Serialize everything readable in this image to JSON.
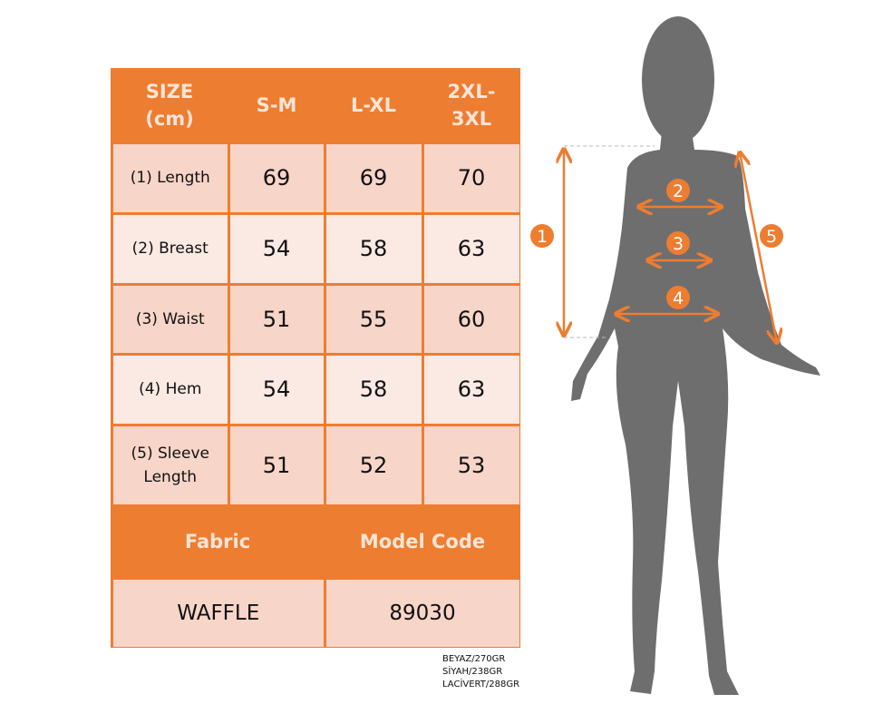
{
  "colors": {
    "accent": "#ED7D31",
    "header_text": "#FBE5D6",
    "cell_dark": "#F8D5C9",
    "cell_light": "#FBE9E3",
    "silhouette": "#6E6E6E"
  },
  "table": {
    "headers": [
      "SIZE (cm)",
      "S-M",
      "L-XL",
      "2XL-3XL"
    ],
    "rows": [
      {
        "label": "(1) Length",
        "values": [
          "69",
          "69",
          "70"
        ]
      },
      {
        "label": "(2) Breast",
        "values": [
          "54",
          "58",
          "63"
        ]
      },
      {
        "label": "(3) Waist",
        "values": [
          "51",
          "55",
          "60"
        ]
      },
      {
        "label": "(4) Hem",
        "values": [
          "54",
          "58",
          "63"
        ]
      },
      {
        "label": "(5) Sleeve Length",
        "values": [
          "51",
          "52",
          "53"
        ]
      }
    ],
    "footer_headers": [
      "Fabric",
      "Model Code"
    ],
    "footer_values": [
      "WAFFLE",
      "89030"
    ]
  },
  "weights": [
    "BEYAZ/270GR",
    "SİYAH/238GR",
    "LACİVERT/288GR"
  ],
  "markers": [
    "1",
    "2",
    "3",
    "4",
    "5"
  ]
}
